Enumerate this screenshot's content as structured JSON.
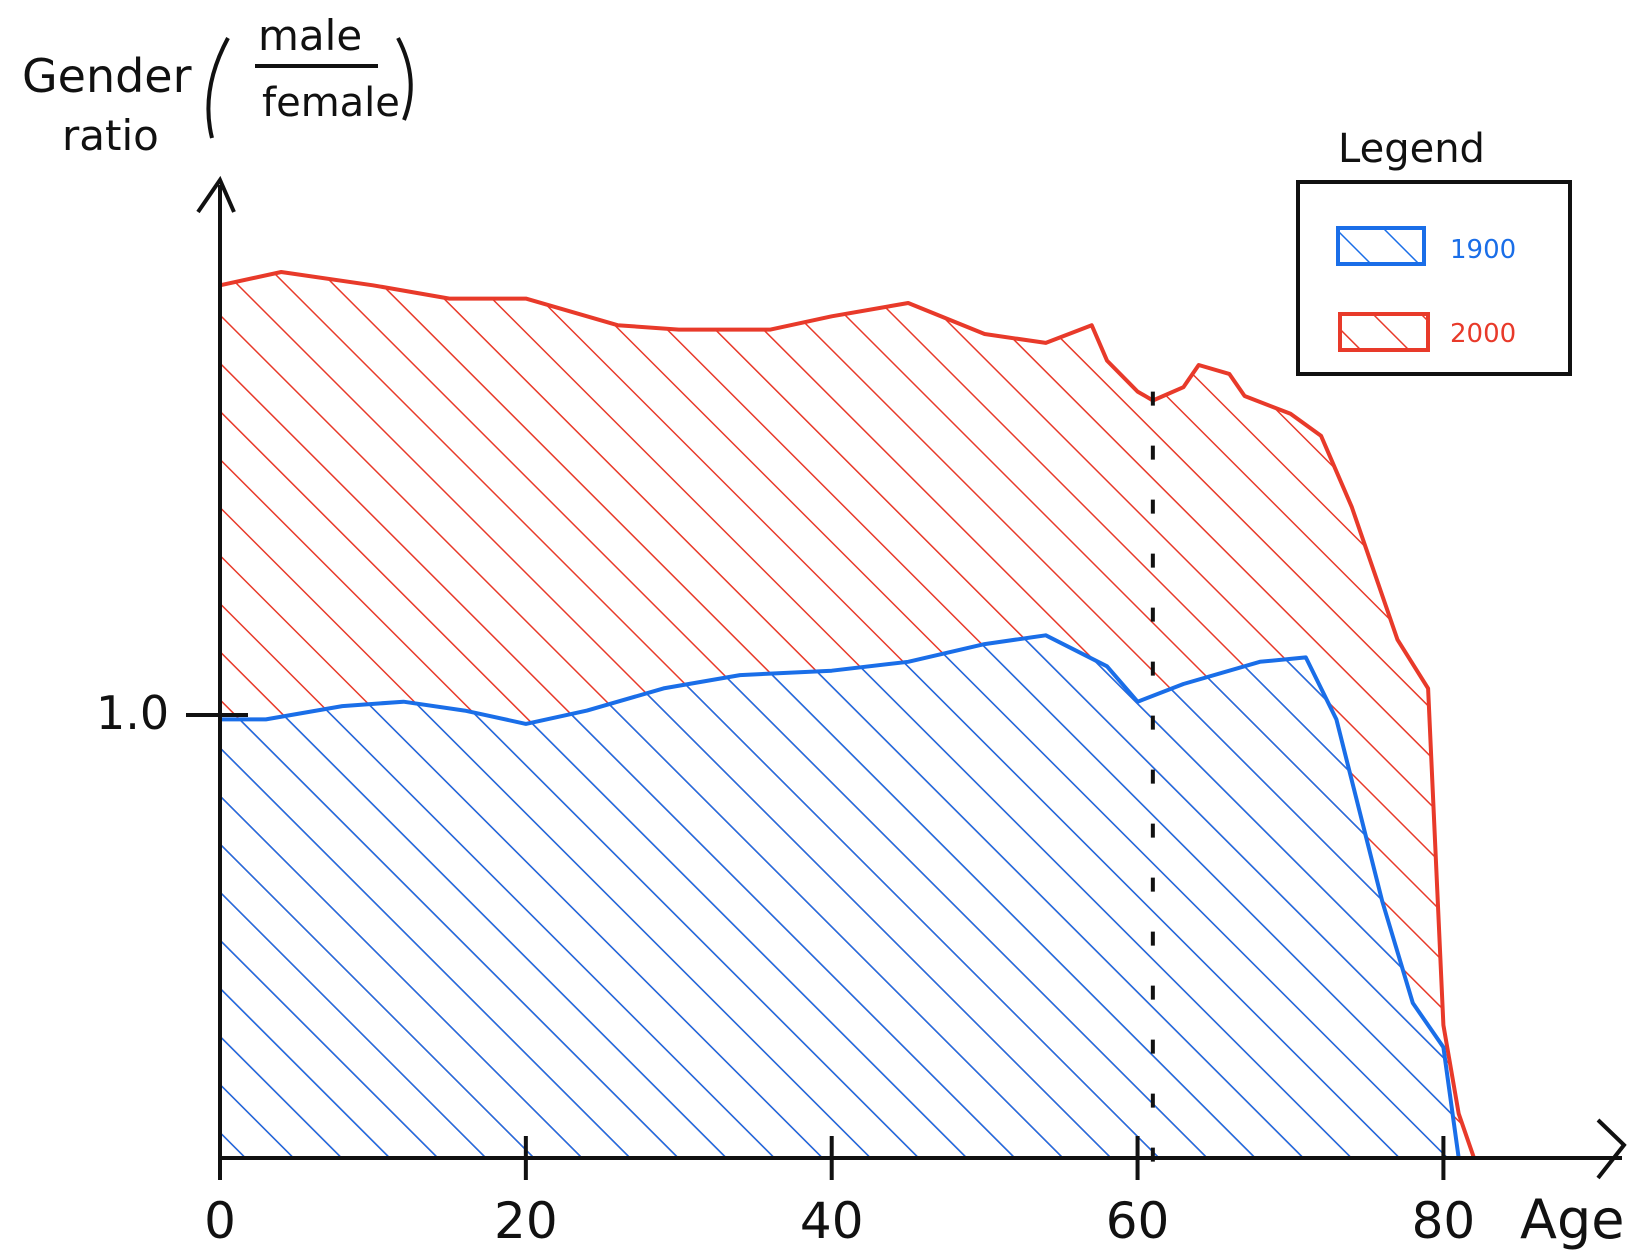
{
  "chart_data": {
    "type": "area",
    "title": "",
    "xlabel": "Age",
    "ylabel_lines": [
      "Gender",
      "ratio"
    ],
    "ylabel_fraction": {
      "numerator": "male",
      "denominator": "female"
    },
    "x_ticks": [
      "0",
      "20",
      "40",
      "60",
      "80"
    ],
    "y_ticks": [
      "1.0"
    ],
    "xlim": [
      0,
      82
    ],
    "ylim": [
      0,
      2.0
    ],
    "marker_line_x": 61,
    "legend": {
      "title": "Legend",
      "placement": "top-right"
    },
    "series": [
      {
        "name": "1900",
        "color": "#1a6ee8",
        "x": [
          0,
          3,
          8,
          12,
          16,
          20,
          24,
          29,
          34,
          40,
          45,
          50,
          54,
          58,
          60,
          63,
          68,
          71,
          73,
          76,
          78,
          80,
          81
        ],
        "y": [
          0.99,
          0.99,
          1.02,
          1.03,
          1.01,
          0.98,
          1.01,
          1.06,
          1.09,
          1.1,
          1.12,
          1.16,
          1.18,
          1.11,
          1.03,
          1.07,
          1.12,
          1.13,
          0.99,
          0.58,
          0.35,
          0.25,
          0.0
        ]
      },
      {
        "name": "2000",
        "color": "#e83a2a",
        "x": [
          0,
          4,
          10,
          15,
          20,
          26,
          30,
          36,
          40,
          45,
          50,
          54,
          57,
          58,
          60,
          61,
          63,
          64,
          66,
          67,
          70,
          72,
          74,
          77,
          79,
          80,
          81,
          82
        ],
        "y": [
          1.97,
          2.0,
          1.97,
          1.94,
          1.94,
          1.88,
          1.87,
          1.87,
          1.9,
          1.93,
          1.86,
          1.84,
          1.88,
          1.8,
          1.73,
          1.71,
          1.74,
          1.79,
          1.77,
          1.72,
          1.68,
          1.63,
          1.47,
          1.17,
          1.06,
          0.3,
          0.1,
          0.0
        ]
      }
    ]
  },
  "colors": {
    "axis": "#111111",
    "series_1900": "#1a6ee8",
    "series_2000": "#e83a2a"
  }
}
